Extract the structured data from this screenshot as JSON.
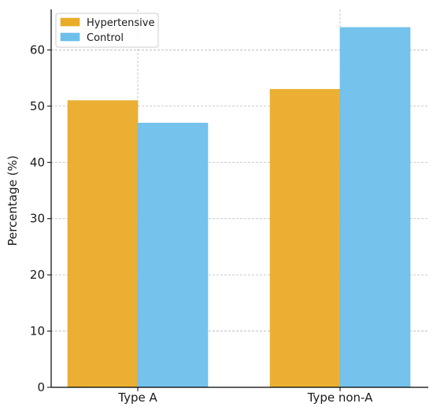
{
  "chart_data": {
    "type": "bar",
    "categories": [
      "Type A",
      "Type non-A"
    ],
    "series": [
      {
        "name": "Hypertensive",
        "values": [
          51,
          53
        ],
        "color": "#EAAC28"
      },
      {
        "name": "Control",
        "values": [
          47,
          64
        ],
        "color": "#6EBFEC"
      }
    ],
    "ylabel": "Percentage (%)",
    "xlabel": "",
    "ylim": [
      0,
      67.2
    ],
    "yticks": [
      0,
      10,
      20,
      30,
      40,
      50,
      60
    ],
    "grid": true,
    "legend_position": "top-left"
  }
}
